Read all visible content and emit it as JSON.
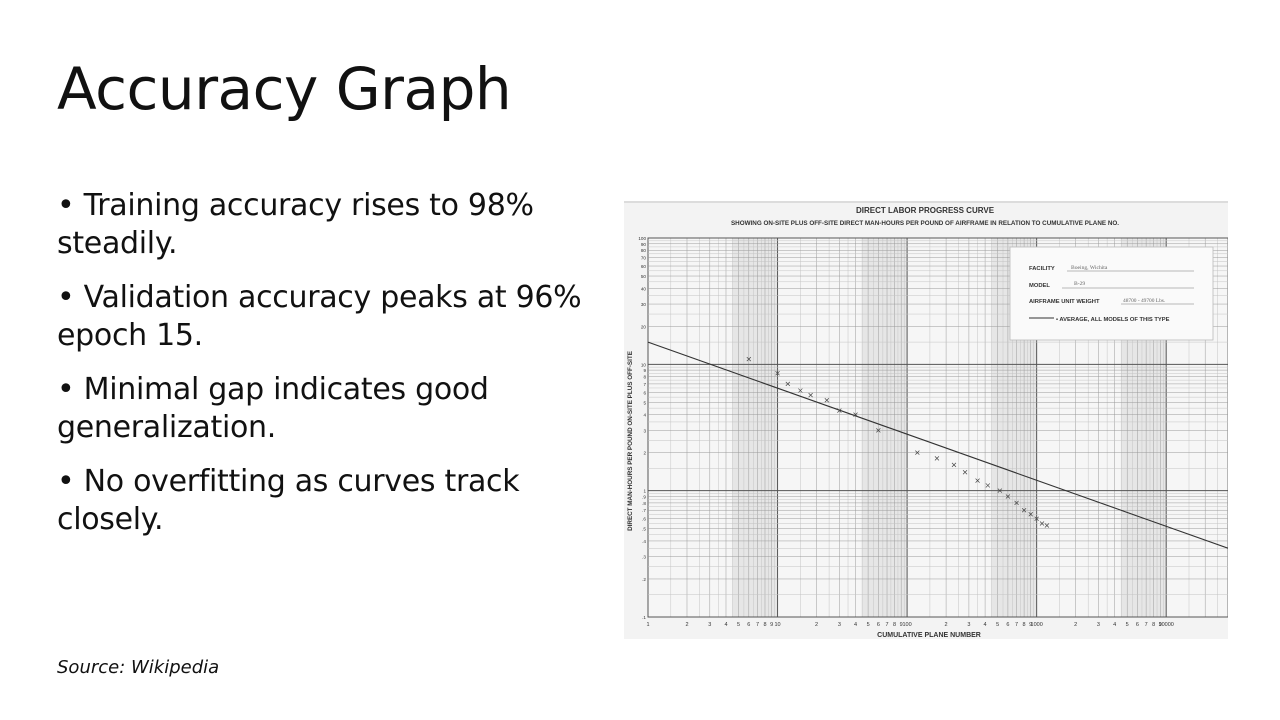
{
  "slide": {
    "title": "Accuracy Graph",
    "bullets": [
      "• Training accuracy rises to 98% steadily.",
      "• Validation accuracy peaks at 96% epoch 15.",
      "• Minimal gap indicates good generalization.",
      "• No overfitting as curves track closely."
    ],
    "source": "Source: Wikipedia"
  },
  "chart_data": {
    "type": "scatter",
    "title": "DIRECT LABOR PROGRESS CURVE",
    "subtitle": "SHOWING ON-SITE PLUS OFF-SITE DIRECT MAN-HOURS PER POUND OF AIRFRAME IN RELATION TO CUMULATIVE PLANE NO.",
    "xlabel": "CUMULATIVE PLANE NUMBER",
    "ylabel": "DIRECT MAN-HOURS PER POUND ON-SITE PLUS OFF-SITE",
    "xscale": "log",
    "yscale": "log",
    "xlim": [
      1,
      30000
    ],
    "ylim": [
      0.1,
      100
    ],
    "x_tick_labels": [
      "1",
      "2",
      "3",
      "4",
      "5",
      "6",
      "7",
      "8",
      "9",
      "10",
      "2",
      "3",
      "4",
      "5",
      "6",
      "7",
      "8",
      "9",
      "100",
      "2",
      "3",
      "4",
      "5",
      "6",
      "7",
      "8",
      "9",
      "1000",
      "2",
      "3",
      "4",
      "5",
      "6",
      "7",
      "8",
      "9",
      "10000"
    ],
    "y_tick_labels": [
      ".1",
      ".2",
      ".3",
      ".4",
      ".5",
      ".6",
      ".7",
      ".8",
      ".9",
      "1",
      "2",
      "3",
      "4",
      "5",
      "6",
      "7",
      "8",
      "9",
      "10",
      "20",
      "30",
      "40",
      "50",
      "60",
      "70",
      "80",
      "90",
      "100"
    ],
    "grid": true,
    "series": [
      {
        "name": "AVERAGE, ALL MODELS OF THIS TYPE",
        "kind": "line",
        "x": [
          1,
          30000
        ],
        "y": [
          15,
          0.35
        ]
      },
      {
        "kind": "scatter",
        "marker": "x",
        "x": [
          6,
          10,
          12,
          15,
          18,
          24,
          30,
          40,
          60,
          120,
          170,
          230,
          280,
          350,
          420,
          520,
          600,
          700,
          800,
          900,
          1000,
          1100,
          1200
        ],
        "y": [
          11,
          8.5,
          7,
          6.2,
          5.7,
          5.2,
          4.3,
          4,
          3,
          2,
          1.8,
          1.6,
          1.4,
          1.2,
          1.1,
          1.0,
          0.9,
          0.8,
          0.7,
          0.65,
          0.6,
          0.55,
          0.53
        ]
      }
    ],
    "legend": {
      "position": "top-right",
      "facility_label": "FACILITY",
      "facility_value": "Boeing, Wichita",
      "model_label": "MODEL",
      "model_value": "B-29",
      "weight_label": "AIRFRAME UNIT WEIGHT",
      "weight_value": "48700 - 49700 Lbs.",
      "line_label": "• AVERAGE, ALL MODELS OF THIS TYPE"
    }
  }
}
